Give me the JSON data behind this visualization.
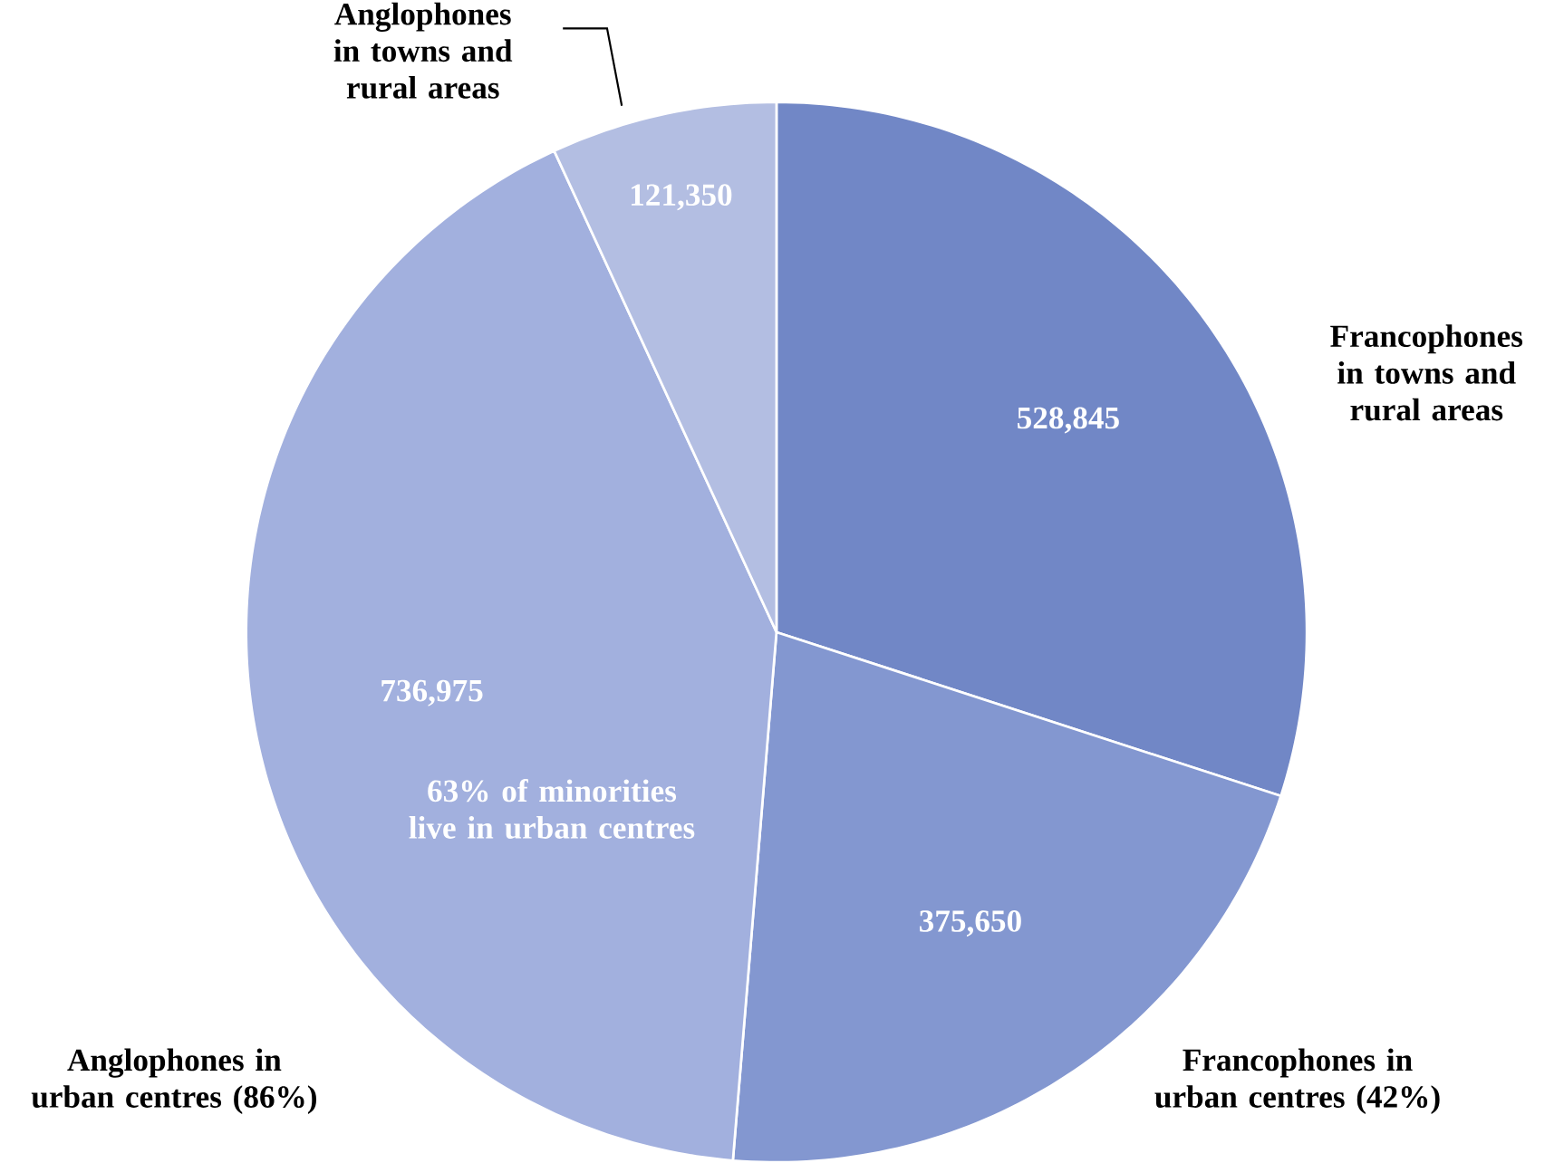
{
  "chart_data": {
    "type": "pie",
    "categories": [
      "Francophones in towns and rural areas",
      "Francophones in urban centres (42%)",
      "Anglophones in urban centres (86%)",
      "Anglophones in towns and rural areas"
    ],
    "values": [
      528845,
      375650,
      736975,
      121350
    ],
    "value_labels": [
      "528,845",
      "375,650",
      "736,975",
      "121,350"
    ],
    "colors": [
      "#7187c6",
      "#8397d0",
      "#a2b0de",
      "#b3bee2"
    ],
    "annotations": [
      "63% of minorities live in urban centres"
    ]
  }
}
